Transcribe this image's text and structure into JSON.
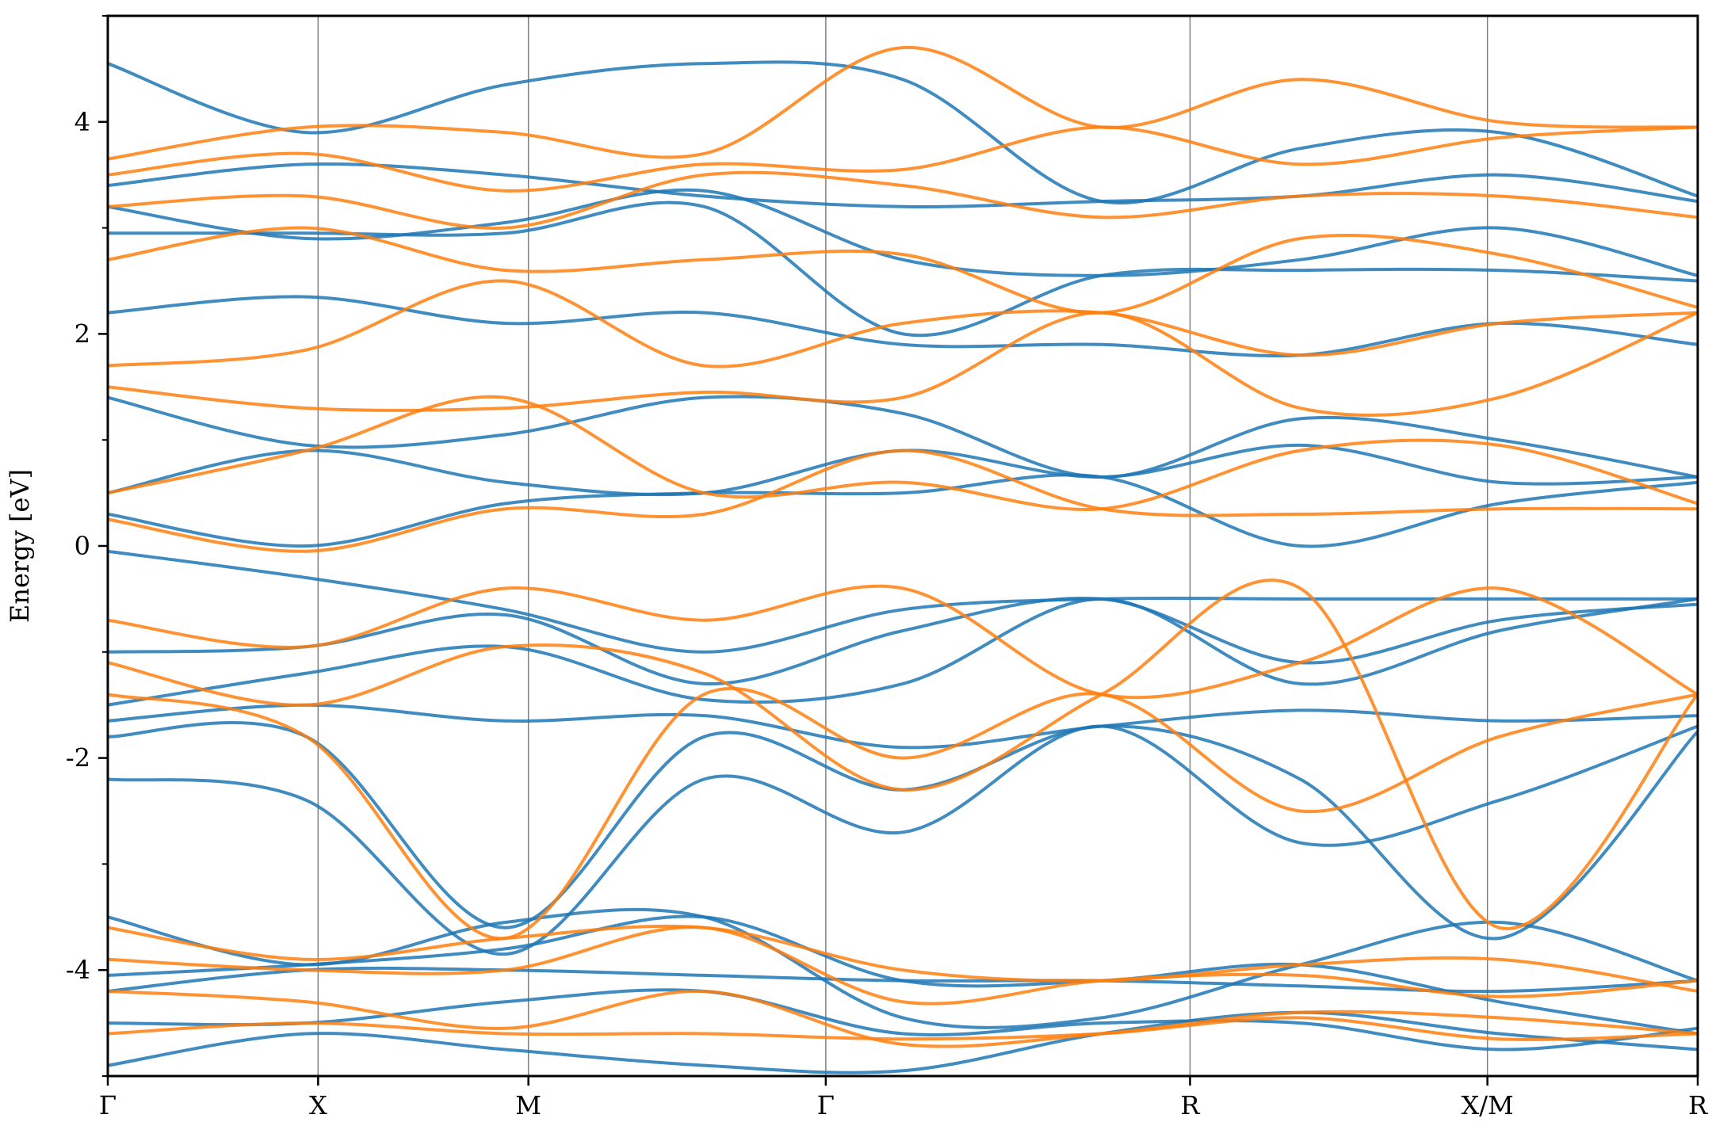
{
  "chart_data": {
    "type": "line",
    "title": "",
    "ylabel": "Energy [eV]",
    "xlabel": "",
    "ylim": [
      -5,
      5
    ],
    "yticks": [
      -4,
      -2,
      0,
      2,
      4
    ],
    "ytick_labels": [
      "-4",
      "-2",
      "0",
      "2",
      "4"
    ],
    "k_path": [
      {
        "label": "Γ",
        "x": 0.0
      },
      {
        "label": "X",
        "x": 0.5
      },
      {
        "label": "M",
        "x": 1.0
      },
      {
        "label": "Γ",
        "x": 1.707
      },
      {
        "label": "R",
        "x": 2.573
      },
      {
        "label": "X/M",
        "x": 3.28
      },
      {
        "label": "R",
        "x": 3.78
      }
    ],
    "grid": false,
    "legend": "none",
    "colors": {
      "series_a": "#1f77b4",
      "series_b": "#ff7f0e",
      "kline": "#808080"
    },
    "series": [
      {
        "color": "#1f77b4",
        "bands": [
          [
            -4.9,
            -4.6,
            -4.75,
            -4.9,
            -4.95,
            -4.6,
            -4.4,
            -4.6,
            -4.75
          ],
          [
            -4.5,
            -4.5,
            -4.3,
            -4.2,
            -4.6,
            -4.5,
            -4.5,
            -4.75,
            -4.55
          ],
          [
            -4.2,
            -4.0,
            -4.0,
            -4.05,
            -4.1,
            -4.1,
            -4.15,
            -4.2,
            -4.1
          ],
          [
            -4.05,
            -3.95,
            -3.8,
            -3.5,
            -4.1,
            -4.1,
            -3.95,
            -4.3,
            -4.6
          ],
          [
            -3.5,
            -3.95,
            -3.55,
            -3.5,
            -4.45,
            -4.45,
            -3.95,
            -3.55,
            -4.1
          ],
          [
            -2.2,
            -2.4,
            -3.85,
            -2.2,
            -2.7,
            -1.7,
            -2.8,
            -2.4,
            -1.7
          ],
          [
            -1.8,
            -1.8,
            -3.6,
            -1.8,
            -2.3,
            -1.7,
            -2.2,
            -3.7,
            -1.75
          ],
          [
            -1.65,
            -1.5,
            -1.65,
            -1.6,
            -1.9,
            -1.7,
            -1.55,
            -1.65,
            -1.6
          ],
          [
            -1.5,
            -1.2,
            -0.95,
            -1.45,
            -1.3,
            -0.5,
            -1.3,
            -0.8,
            -0.5
          ],
          [
            -1.0,
            -0.95,
            -0.65,
            -1.3,
            -0.8,
            -0.5,
            -1.1,
            -0.7,
            -0.55
          ],
          [
            -0.05,
            -0.3,
            -0.6,
            -1.0,
            -0.6,
            -0.5,
            -0.5,
            -0.5,
            -0.5
          ],
          [
            0.3,
            0.0,
            0.4,
            0.5,
            0.5,
            0.65,
            0.0,
            0.4,
            0.6
          ],
          [
            0.5,
            0.9,
            0.6,
            0.5,
            0.9,
            0.65,
            0.95,
            0.6,
            0.65
          ],
          [
            1.4,
            0.95,
            1.05,
            1.4,
            1.25,
            0.65,
            1.2,
            1.0,
            0.65
          ],
          [
            2.2,
            2.35,
            2.1,
            2.2,
            1.9,
            1.9,
            1.8,
            2.1,
            1.9
          ],
          [
            2.95,
            2.95,
            2.95,
            3.2,
            2.0,
            2.55,
            2.6,
            2.6,
            2.5
          ],
          [
            3.2,
            2.9,
            3.05,
            3.35,
            2.7,
            2.55,
            2.7,
            3.0,
            2.55
          ],
          [
            3.4,
            3.6,
            3.5,
            3.3,
            3.2,
            3.25,
            3.3,
            3.5,
            3.25
          ],
          [
            4.55,
            3.9,
            4.35,
            4.55,
            4.4,
            3.25,
            3.75,
            3.9,
            3.3
          ]
        ]
      },
      {
        "color": "#ff7f0e",
        "bands": [
          [
            -4.6,
            -4.5,
            -4.6,
            -4.6,
            -4.65,
            -4.6,
            -4.45,
            -4.65,
            -4.6
          ],
          [
            -4.2,
            -4.3,
            -4.55,
            -4.2,
            -4.7,
            -4.6,
            -4.4,
            -4.45,
            -4.6
          ],
          [
            -3.9,
            -4.0,
            -4.0,
            -3.6,
            -4.3,
            -4.1,
            -4.05,
            -4.25,
            -4.1
          ],
          [
            -3.6,
            -3.9,
            -3.7,
            -3.6,
            -4.0,
            -4.1,
            -3.95,
            -3.9,
            -4.2
          ],
          [
            -1.4,
            -1.8,
            -3.7,
            -1.4,
            -2.0,
            -1.4,
            -2.5,
            -1.8,
            -1.4
          ],
          [
            -1.1,
            -1.5,
            -0.95,
            -1.2,
            -2.3,
            -1.4,
            -0.4,
            -3.6,
            -1.4
          ],
          [
            -0.7,
            -0.95,
            -0.4,
            -0.7,
            -0.4,
            -1.4,
            -1.1,
            -0.4,
            -1.4
          ],
          [
            0.25,
            -0.05,
            0.35,
            0.3,
            0.9,
            0.35,
            0.3,
            0.35,
            0.35
          ],
          [
            0.5,
            0.9,
            1.4,
            0.5,
            0.6,
            0.35,
            0.9,
            0.95,
            0.4
          ],
          [
            1.5,
            1.3,
            1.3,
            1.45,
            1.4,
            2.2,
            1.3,
            1.4,
            2.2
          ],
          [
            1.7,
            1.85,
            2.5,
            1.7,
            2.1,
            2.2,
            1.8,
            2.1,
            2.2
          ],
          [
            2.7,
            3.0,
            2.6,
            2.7,
            2.75,
            2.2,
            2.9,
            2.75,
            2.25
          ],
          [
            3.2,
            3.3,
            3.0,
            3.5,
            3.4,
            3.1,
            3.3,
            3.3,
            3.1
          ],
          [
            3.5,
            3.7,
            3.35,
            3.6,
            3.55,
            3.95,
            3.6,
            3.85,
            3.95
          ],
          [
            3.65,
            3.95,
            3.9,
            3.7,
            4.7,
            3.95,
            4.4,
            4.0,
            3.95
          ]
        ]
      }
    ]
  }
}
